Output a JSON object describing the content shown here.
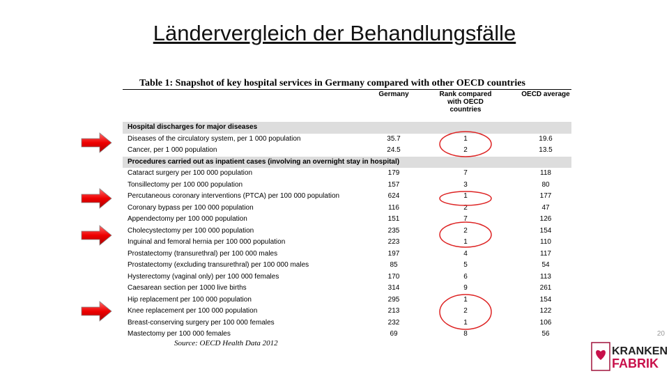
{
  "slide": {
    "title": "Ländervergleich der Behandlungsfälle",
    "page_number": "20"
  },
  "table": {
    "caption": "Table 1: Snapshot of key hospital services in Germany compared with other OECD countries",
    "columns": [
      "Germany",
      "Rank compared with OECD countries",
      "OECD average"
    ],
    "sections": [
      {
        "heading": "Hospital discharges for major diseases",
        "rows": [
          [
            "Diseases of the circulatory system, per 1 000 population",
            35.7,
            1,
            19.6
          ],
          [
            "Cancer, per 1 000 population",
            24.5,
            2,
            13.5
          ]
        ]
      },
      {
        "heading": "Procedures carried out as inpatient cases (involving an overnight stay in hospital)",
        "rows": [
          [
            "Cataract surgery per 100 000 population",
            179,
            7,
            118
          ],
          [
            "Tonsillectomy per 100 000 population",
            157,
            3,
            80
          ],
          [
            "Percutaneous coronary interventions (PTCA) per 100 000 population",
            624,
            1,
            177
          ],
          [
            "Coronary bypass per 100 000 population",
            116,
            2,
            47
          ],
          [
            "Appendectomy per 100 000 population",
            151,
            7,
            126
          ],
          [
            "Cholecystectomy per 100 000 population",
            235,
            2,
            154
          ],
          [
            "Inguinal and femoral hernia per 100 000 population",
            223,
            1,
            110
          ],
          [
            "Prostatectomy (transurethral) per 100 000 males",
            197,
            4,
            117
          ],
          [
            "Prostatectomy (excluding transurethral) per 100 000 males",
            85,
            5,
            54
          ],
          [
            "Hysterectomy (vaginal only) per 100 000 females",
            170,
            6,
            113
          ],
          [
            "Caesarean section per 1000 live births",
            314,
            9,
            261
          ],
          [
            "Hip replacement per 100 000 population",
            295,
            1,
            154
          ],
          [
            "Knee replacement per 100 000 population",
            213,
            2,
            122
          ],
          [
            "Breast-conserving surgery per 100 000 females",
            232,
            1,
            106
          ],
          [
            "Mastectomy per 100 000 females",
            69,
            8,
            56
          ]
        ]
      }
    ],
    "source": "Source: OECD Health Data 2012"
  },
  "logo": {
    "line1": "KRANKEN",
    "line2": "FABRIK"
  }
}
